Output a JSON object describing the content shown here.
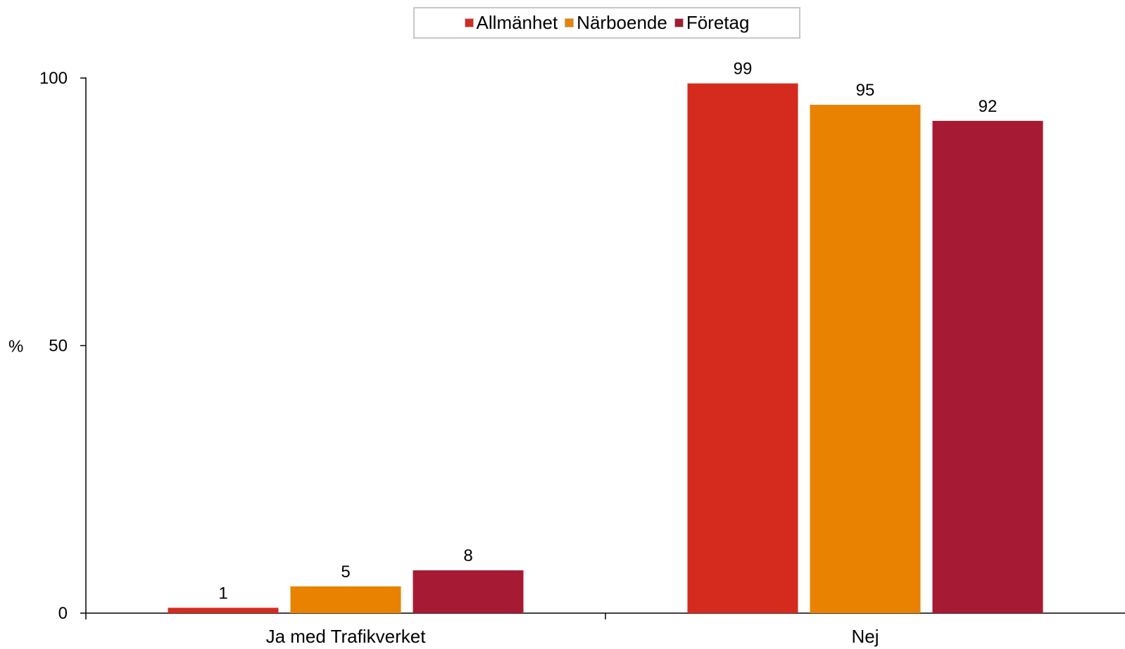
{
  "chart_data": {
    "type": "bar",
    "categories": [
      "Ja med Trafikverket",
      "Nej"
    ],
    "series": [
      {
        "name": "Allmänhet",
        "color": "#d52b1e",
        "values": [
          1,
          99
        ]
      },
      {
        "name": "Närboende",
        "color": "#e88200",
        "values": [
          5,
          95
        ]
      },
      {
        "name": "Företag",
        "color": "#a61a33",
        "values": [
          8,
          92
        ]
      }
    ],
    "ylabel": "%",
    "ylim": [
      0,
      100
    ],
    "yticks": [
      "0",
      "50",
      "100"
    ],
    "legend_position": "top-center",
    "grid": false
  }
}
